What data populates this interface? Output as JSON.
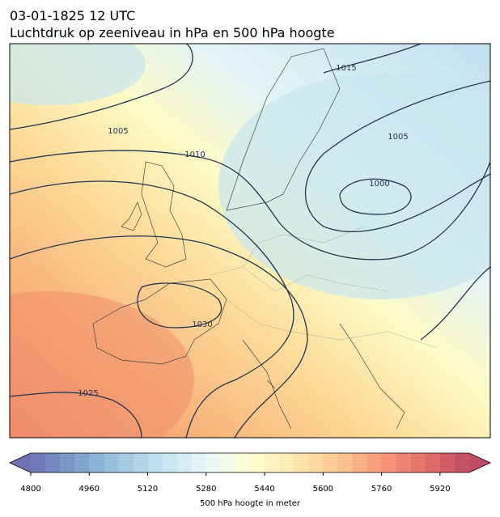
{
  "title": "03-01-1825 12 UTC",
  "subtitle": "Luchtdruk op zeeniveau in hPa en 500 hPa hoogte",
  "contour_labels": [
    1015,
    1005,
    1010,
    1005,
    1000,
    1030,
    1025
  ],
  "colorbar": {
    "label": "500 hPa hoogte in meter",
    "lim": [
      4800,
      6000
    ],
    "ticks": [
      4800,
      4960,
      5120,
      5280,
      5440,
      5600,
      5760,
      5920
    ]
  }
}
